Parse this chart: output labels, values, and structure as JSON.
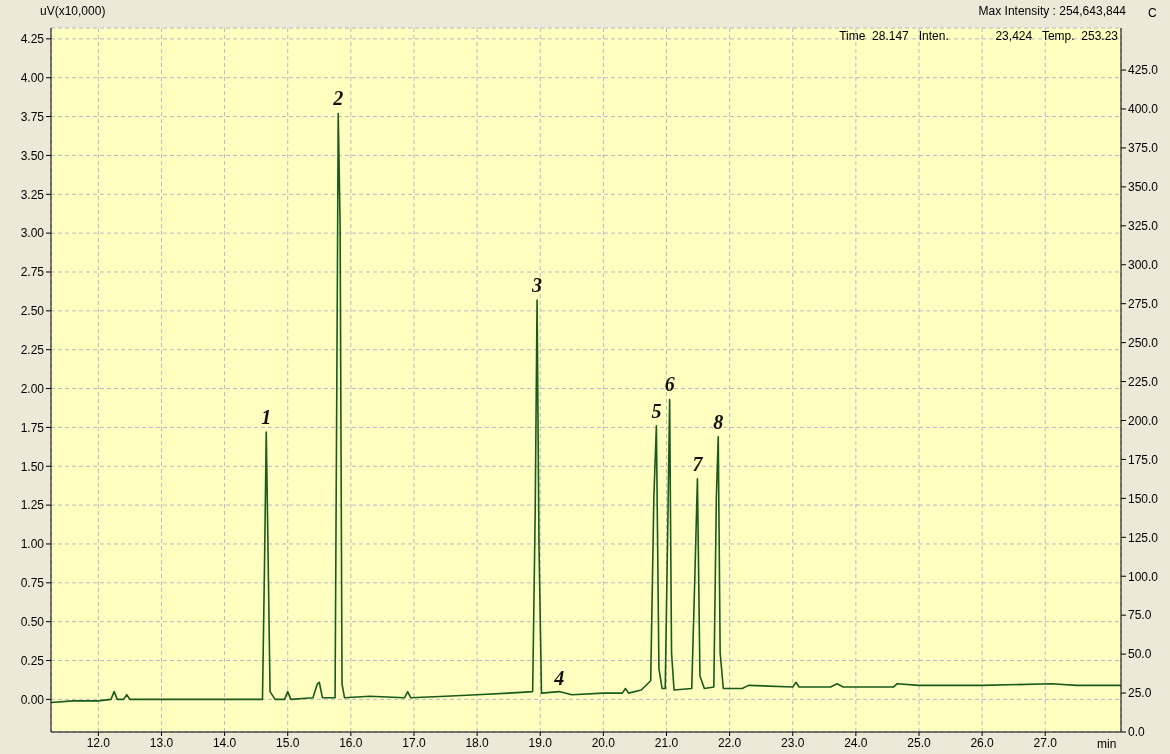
{
  "chart_data": {
    "type": "line",
    "ylabel": "uV(x10,000)",
    "y2label": "C",
    "xlabel": "min",
    "annotations": [
      "Max Intensity : 254,643,844",
      "Time  28.147   Inten.              23,424   Temp.  253.23",
      {
        "text": "1",
        "x": 14.66,
        "y": 1.72
      },
      {
        "text": "2",
        "x": 15.8,
        "y": 3.77
      },
      {
        "text": "3",
        "x": 18.95,
        "y": 2.57
      },
      {
        "text": "4",
        "x": 19.3,
        "y": 0.04
      },
      {
        "text": "5",
        "x": 20.84,
        "y": 1.76
      },
      {
        "text": "6",
        "x": 21.05,
        "y": 1.93
      },
      {
        "text": "7",
        "x": 21.49,
        "y": 1.42
      },
      {
        "text": "8",
        "x": 21.82,
        "y": 1.69
      }
    ],
    "series": [
      {
        "color": "#1a5a1a",
        "x": [
          11.25,
          11.6,
          12.0,
          12.2,
          12.25,
          12.3,
          12.4,
          12.45,
          12.5,
          13.0,
          14.0,
          14.6,
          14.63,
          14.66,
          14.69,
          14.72,
          14.8,
          14.95,
          15.0,
          15.05,
          15.4,
          15.47,
          15.5,
          15.55,
          15.75,
          15.78,
          15.8,
          15.83,
          15.86,
          15.9,
          16.3,
          16.85,
          16.9,
          16.95,
          17.5,
          18.0,
          18.5,
          18.88,
          18.92,
          18.95,
          18.98,
          19.02,
          19.3,
          19.5,
          20.0,
          20.3,
          20.35,
          20.4,
          20.6,
          20.75,
          20.8,
          20.84,
          20.88,
          20.93,
          20.98,
          21.02,
          21.05,
          21.08,
          21.12,
          21.4,
          21.45,
          21.49,
          21.53,
          21.6,
          21.75,
          21.79,
          21.82,
          21.85,
          21.9,
          22.2,
          22.3,
          23.0,
          23.05,
          23.1,
          23.6,
          23.7,
          23.8,
          24.6,
          24.65,
          25.0,
          26.0,
          27.1,
          27.5,
          28.2
        ],
        "values": [
          -0.02,
          -0.01,
          -0.01,
          0.0,
          0.05,
          0.0,
          0.0,
          0.03,
          0.0,
          0.0,
          0.0,
          0.0,
          0.8,
          1.72,
          0.9,
          0.05,
          0.0,
          0.0,
          0.05,
          0.0,
          0.01,
          0.1,
          0.11,
          0.01,
          0.01,
          2.2,
          3.77,
          3.05,
          0.1,
          0.01,
          0.02,
          0.01,
          0.05,
          0.01,
          0.02,
          0.03,
          0.04,
          0.05,
          1.2,
          2.57,
          1.0,
          0.04,
          0.05,
          0.03,
          0.04,
          0.04,
          0.07,
          0.04,
          0.06,
          0.12,
          1.3,
          1.76,
          0.2,
          0.07,
          0.07,
          1.1,
          1.93,
          0.3,
          0.06,
          0.07,
          0.8,
          1.42,
          0.15,
          0.07,
          0.08,
          1.3,
          1.69,
          0.3,
          0.07,
          0.07,
          0.09,
          0.08,
          0.11,
          0.08,
          0.08,
          0.1,
          0.08,
          0.08,
          0.1,
          0.09,
          0.09,
          0.1,
          0.09,
          0.09
        ]
      }
    ],
    "xlim": [
      11.25,
      28.2
    ],
    "xticks": [
      {
        "value": 12,
        "label": "12.0"
      },
      {
        "value": 13,
        "label": "13.0"
      },
      {
        "value": 14,
        "label": "14.0"
      },
      {
        "value": 15,
        "label": "15.0"
      },
      {
        "value": 16,
        "label": "16.0"
      },
      {
        "value": 17,
        "label": "17.0"
      },
      {
        "value": 18,
        "label": "18.0"
      },
      {
        "value": 19,
        "label": "19.0"
      },
      {
        "value": 20,
        "label": "20.0"
      },
      {
        "value": 21,
        "label": "21.0"
      },
      {
        "value": 22,
        "label": "22.0"
      },
      {
        "value": 23,
        "label": "23.0"
      },
      {
        "value": 24,
        "label": "24.0"
      },
      {
        "value": 25,
        "label": "25.0"
      },
      {
        "value": 26,
        "label": "26.0"
      },
      {
        "value": 27,
        "label": "27.0"
      }
    ],
    "ylim": [
      -0.21,
      4.32
    ],
    "yticks": [
      {
        "value": 0,
        "label": "0.00"
      },
      0.25,
      {
        "value": 0.5,
        "label": "0.50"
      },
      0.75,
      {
        "value": 1,
        "label": "1.00"
      },
      1.25,
      {
        "value": 1.5,
        "label": "1.50"
      },
      1.75,
      {
        "value": 2,
        "label": "2.00"
      },
      2.25,
      {
        "value": 2.5,
        "label": "2.50"
      },
      2.75,
      {
        "value": 3,
        "label": "3.00"
      },
      3.25,
      {
        "value": 3.5,
        "label": "3.50"
      },
      3.75,
      {
        "value": 4,
        "label": "4.00"
      },
      4.25
    ],
    "y2lim": [
      0,
      452
    ],
    "y2ticks": [
      {
        "value": 0,
        "label": "0.0"
      },
      {
        "value": 25,
        "label": "25.0"
      },
      {
        "value": 50,
        "label": "50.0"
      },
      {
        "value": 75,
        "label": "75.0"
      },
      {
        "value": 100,
        "label": "100.0"
      },
      {
        "value": 125,
        "label": "125.0"
      },
      {
        "value": 150,
        "label": "150.0"
      },
      {
        "value": 175,
        "label": "175.0"
      },
      {
        "value": 200,
        "label": "200.0"
      },
      {
        "value": 225,
        "label": "225.0"
      },
      {
        "value": 250,
        "label": "250.0"
      },
      {
        "value": 275,
        "label": "275.0"
      },
      {
        "value": 300,
        "label": "300.0"
      },
      {
        "value": 325,
        "label": "325.0"
      },
      {
        "value": 350,
        "label": "350.0"
      },
      {
        "value": 375,
        "label": "375.0"
      },
      {
        "value": 400,
        "label": "400.0"
      },
      {
        "value": 425,
        "label": "425.0"
      }
    ],
    "grid": true,
    "line_style": "solid",
    "marker": "none"
  }
}
